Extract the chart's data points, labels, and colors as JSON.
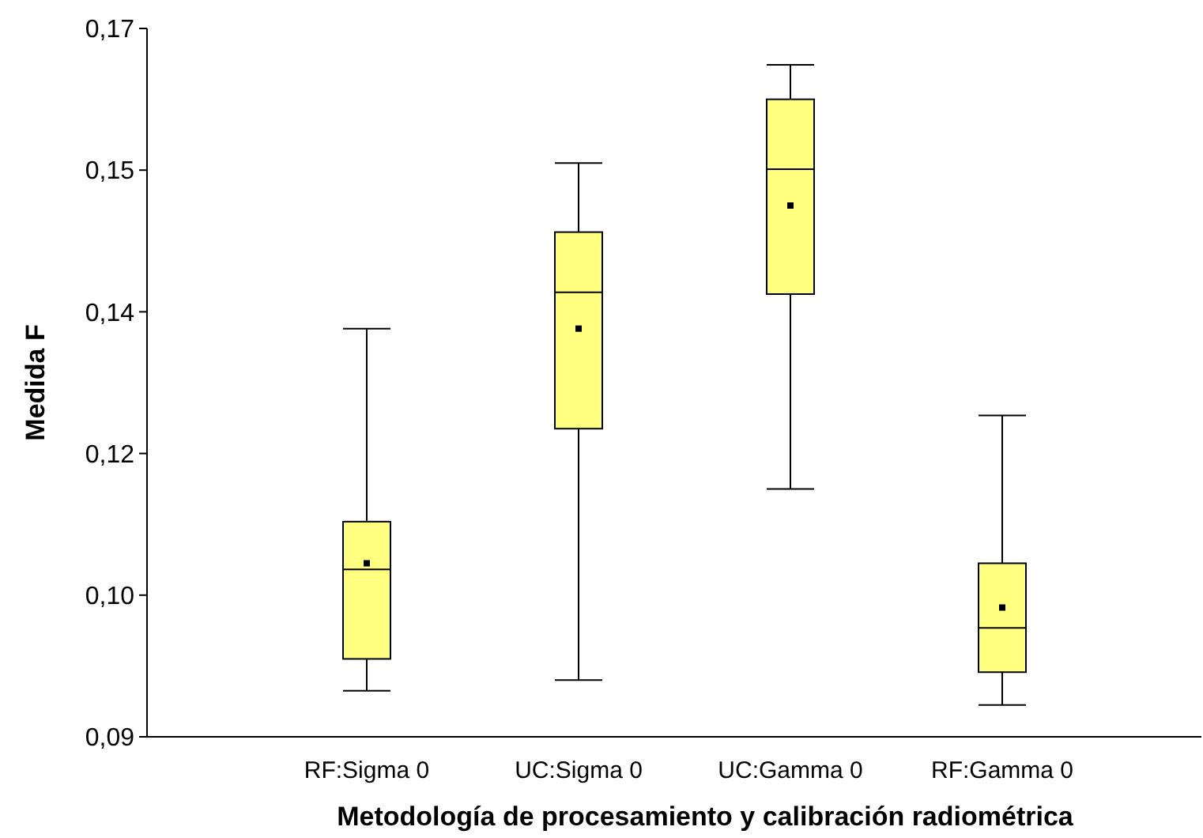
{
  "chart_data": {
    "type": "box",
    "xlabel": "Metodología de procesamiento y calibración radiométrica",
    "ylabel": "Medida F",
    "categories": [
      "RF:Sigma 0",
      "UC:Sigma 0",
      "UC:Gamma 0",
      "RF:Gamma 0"
    ],
    "color": "#ffff80",
    "ylim": [
      0.0875,
      0.1675
    ],
    "yticks": [
      {
        "value": 0.0875,
        "label": "0,09"
      },
      {
        "value": 0.1035,
        "label": "0,10"
      },
      {
        "value": 0.1195,
        "label": "0,12"
      },
      {
        "value": 0.1355,
        "label": "0,14"
      },
      {
        "value": 0.1515,
        "label": "0,15"
      },
      {
        "value": 0.1675,
        "label": "0,17"
      }
    ],
    "boxes": [
      {
        "low": 0.0927,
        "q1": 0.0963,
        "median": 0.1064,
        "q3": 0.1118,
        "high": 0.1336,
        "mean": 0.1071
      },
      {
        "low": 0.0939,
        "q1": 0.1223,
        "median": 0.1377,
        "q3": 0.1445,
        "high": 0.1523,
        "mean": 0.1336
      },
      {
        "low": 0.1155,
        "q1": 0.1375,
        "median": 0.1516,
        "q3": 0.1595,
        "high": 0.1634,
        "mean": 0.1475
      },
      {
        "low": 0.0911,
        "q1": 0.0948,
        "median": 0.0998,
        "q3": 0.1071,
        "high": 0.1238,
        "mean": 0.1021
      }
    ]
  }
}
